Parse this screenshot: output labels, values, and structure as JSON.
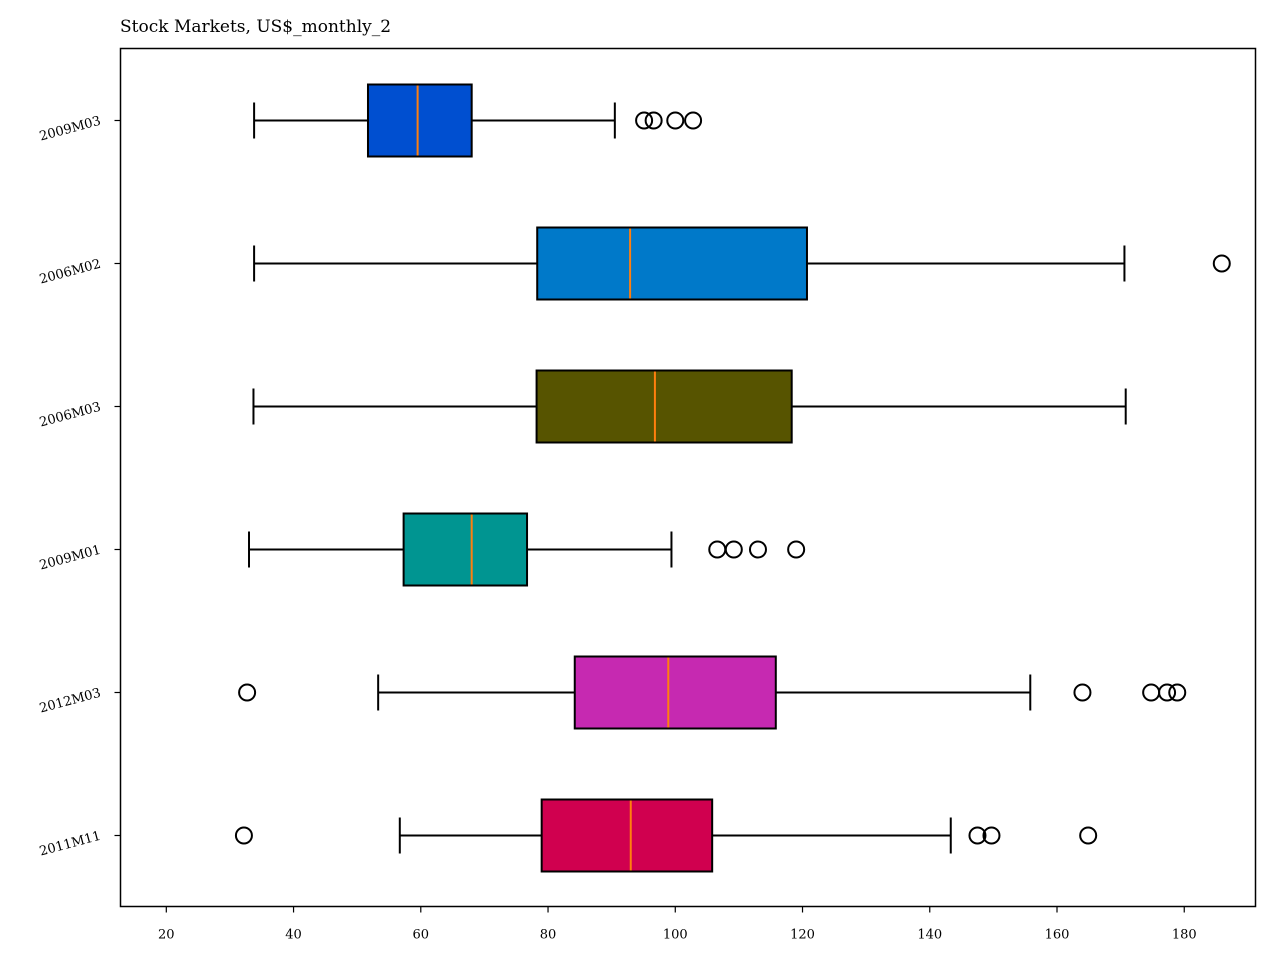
{
  "chart_data": {
    "type": "boxplot",
    "orientation": "horizontal",
    "title": "Stock Markets, US$_monthly_2",
    "xlabel": "",
    "ylabel": "",
    "xlim": [
      12.8,
      191.2
    ],
    "xticks": [
      20,
      40,
      60,
      80,
      100,
      120,
      140,
      160,
      180
    ],
    "grid": false,
    "series": [
      {
        "name": "2009M03",
        "color": "#004fd0",
        "whisker_low": 33.8,
        "q1": 51.7,
        "median": 59.5,
        "q3": 68.0,
        "whisker_high": 90.5,
        "outliers": [
          95.1,
          96.6,
          100.0,
          102.8
        ]
      },
      {
        "name": "2006M02",
        "color": "#0079c9",
        "whisker_low": 33.8,
        "q1": 78.3,
        "median": 92.9,
        "q3": 120.7,
        "whisker_high": 170.6,
        "outliers": [
          185.9
        ]
      },
      {
        "name": "2006M03",
        "color": "#575400",
        "whisker_low": 33.7,
        "q1": 78.2,
        "median": 96.8,
        "q3": 118.3,
        "whisker_high": 170.8,
        "outliers": []
      },
      {
        "name": "2009M01",
        "color": "#009591",
        "whisker_low": 33.0,
        "q1": 57.3,
        "median": 68.0,
        "q3": 76.7,
        "whisker_high": 99.4,
        "outliers": [
          106.6,
          109.2,
          113.0,
          119.0
        ]
      },
      {
        "name": "2012M03",
        "color": "#c629b1",
        "whisker_low": 53.3,
        "q1": 84.2,
        "median": 98.9,
        "q3": 115.8,
        "whisker_high": 155.8,
        "outliers": [
          32.7,
          164.0,
          174.8,
          177.3,
          178.9
        ]
      },
      {
        "name": "2011M11",
        "color": "#d0004f",
        "whisker_low": 56.7,
        "q1": 79.0,
        "median": 93.0,
        "q3": 105.8,
        "whisker_high": 143.3,
        "outliers": [
          32.2,
          147.5,
          149.7,
          164.9
        ]
      }
    ]
  }
}
